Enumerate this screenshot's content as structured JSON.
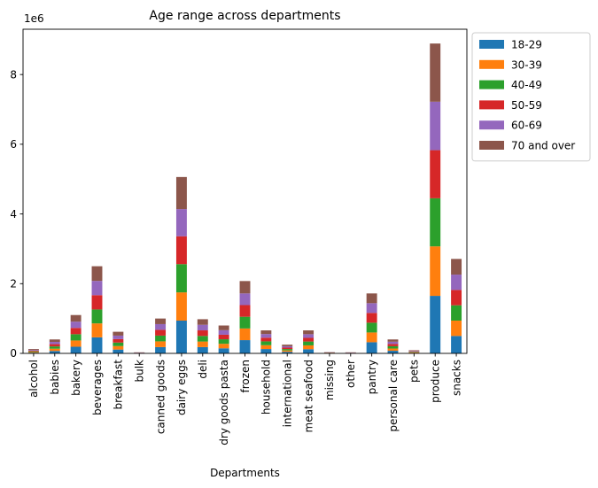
{
  "chart_data": {
    "type": "bar",
    "stacked": true,
    "title": "Age range across departments",
    "xlabel": "Departments",
    "ylabel": "",
    "y_offset_label": "1e6",
    "ylim": [
      0,
      9300000
    ],
    "yticks": [
      0,
      2000000,
      4000000,
      6000000,
      8000000
    ],
    "ytick_labels": [
      "0",
      "2",
      "4",
      "6",
      "8"
    ],
    "grid": false,
    "legend_position": "outside-top-right",
    "categories": [
      "alcohol",
      "babies",
      "bakery",
      "beverages",
      "breakfast",
      "bulk",
      "canned goods",
      "dairy eggs",
      "deli",
      "dry goods pasta",
      "frozen",
      "household",
      "international",
      "meat seafood",
      "missing",
      "other",
      "pantry",
      "personal care",
      "pets",
      "produce",
      "snacks"
    ],
    "series": [
      {
        "name": "18-29",
        "color": "#1f77b4",
        "values": [
          20000,
          70000,
          190000,
          460000,
          110000,
          5000,
          180000,
          940000,
          180000,
          145000,
          380000,
          125000,
          45000,
          120000,
          7000,
          5000,
          320000,
          75000,
          15000,
          1650000,
          500000
        ]
      },
      {
        "name": "30-39",
        "color": "#ff7f0e",
        "values": [
          20000,
          65000,
          180000,
          400000,
          100000,
          5000,
          165000,
          810000,
          160000,
          130000,
          335000,
          110000,
          40000,
          110000,
          6000,
          5000,
          280000,
          65000,
          15000,
          1420000,
          440000
        ]
      },
      {
        "name": "40-49",
        "color": "#2ca02c",
        "values": [
          20000,
          65000,
          180000,
          400000,
          100000,
          5000,
          165000,
          810000,
          160000,
          130000,
          335000,
          110000,
          40000,
          110000,
          6000,
          5000,
          280000,
          65000,
          15000,
          1380000,
          440000
        ]
      },
      {
        "name": "50-59",
        "color": "#d62728",
        "values": [
          20000,
          65000,
          180000,
          410000,
          100000,
          5000,
          165000,
          800000,
          160000,
          130000,
          335000,
          105000,
          40000,
          105000,
          6000,
          5000,
          280000,
          65000,
          15000,
          1380000,
          440000
        ]
      },
      {
        "name": "60-69",
        "color": "#9467bd",
        "values": [
          20000,
          65000,
          180000,
          410000,
          100000,
          5000,
          165000,
          780000,
          160000,
          130000,
          335000,
          105000,
          40000,
          105000,
          6000,
          5000,
          280000,
          65000,
          15000,
          1390000,
          440000
        ]
      },
      {
        "name": "70 and over",
        "color": "#8c564b",
        "values": [
          25000,
          70000,
          190000,
          420000,
          110000,
          5000,
          160000,
          920000,
          160000,
          135000,
          355000,
          105000,
          45000,
          110000,
          6000,
          5000,
          280000,
          65000,
          15000,
          1670000,
          450000
        ]
      }
    ]
  }
}
